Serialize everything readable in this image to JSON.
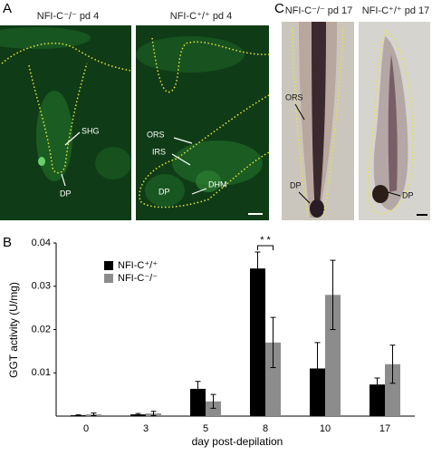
{
  "panel_labels": [
    "A",
    "B",
    "C"
  ],
  "panel_a": {
    "images": [
      {
        "title": "NFI-C⁻/⁻ pd 4",
        "labels": [
          "SHG",
          "DP"
        ]
      },
      {
        "title": "NFI-C⁺/⁺ pd 4",
        "labels": [
          "ORS",
          "IRS",
          "DP",
          "DHM"
        ]
      }
    ]
  },
  "panel_c": {
    "images": [
      {
        "title": "NFI-C⁻/⁻ pd 17",
        "labels": [
          "ORS",
          "DP"
        ]
      },
      {
        "title": "NFI-C⁺/⁺ pd 17",
        "labels": [
          "DP"
        ]
      }
    ]
  },
  "chart_data": {
    "type": "bar",
    "xlabel": "day post-depilation",
    "ylabel": "GGT activity (U/mg)",
    "categories": [
      "0",
      "3",
      "5",
      "8",
      "10",
      "17"
    ],
    "series": [
      {
        "name": "NFI-C⁺/⁺",
        "color": "#000000",
        "values": [
          0.0002,
          0.0004,
          0.0063,
          0.0341,
          0.011,
          0.0073
        ],
        "errors": [
          0.0001,
          0.0002,
          0.0017,
          0.0038,
          0.006,
          0.0015
        ]
      },
      {
        "name": "NFI-C⁻/⁻",
        "color": "#8c8c8c",
        "values": [
          0.0004,
          0.0006,
          0.0034,
          0.017,
          0.028,
          0.012
        ],
        "errors": [
          0.0003,
          0.0005,
          0.0016,
          0.0058,
          0.008,
          0.0044
        ]
      }
    ],
    "ylim": [
      0,
      0.04
    ],
    "yticks": [
      0.01,
      0.02,
      0.03,
      0.04
    ],
    "grid": false,
    "annotation": "* *"
  }
}
